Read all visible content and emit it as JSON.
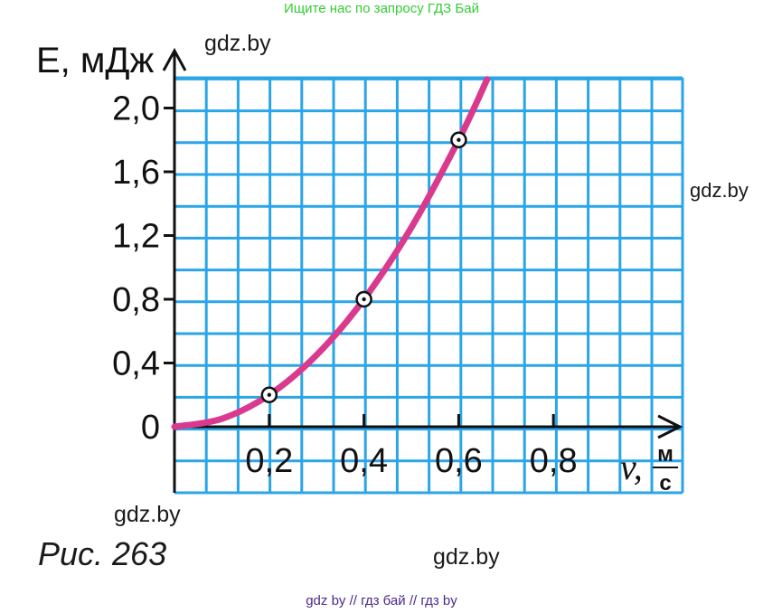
{
  "banner": "Ищите нас по запросу ГДЗ Бай",
  "watermarks": [
    "gdz.by",
    "gdz.by",
    "gdz.by",
    "gdz.by"
  ],
  "caption": "Рис. 263",
  "footer": "gdz by  //  гдз бай  //  гдз by",
  "colors": {
    "grid": "#2aa5e8",
    "curve": "#d93a8e",
    "axis": "#111111"
  },
  "chart_data": {
    "type": "line",
    "title": "",
    "ylabel": "E, мДж",
    "xlabel": "v, м/с",
    "xlabel_var": "v,",
    "xlabel_unit_num": "м",
    "xlabel_unit_den": "с",
    "x_ticks": [
      "0,2",
      "0,4",
      "0,6",
      "0,8"
    ],
    "x_tick_values": [
      0.2,
      0.4,
      0.6,
      0.8
    ],
    "y_ticks": [
      "0",
      "0,4",
      "0,8",
      "1,2",
      "1,6",
      "2,0"
    ],
    "y_tick_values": [
      0,
      0.4,
      0.8,
      1.2,
      1.6,
      2.0
    ],
    "xlim": [
      0,
      1.07
    ],
    "ylim": [
      -0.4,
      2.2
    ],
    "grid": true,
    "curve": {
      "x": [
        0,
        0.1,
        0.2,
        0.3,
        0.4,
        0.5,
        0.6,
        0.66
      ],
      "y": [
        0,
        0.05,
        0.2,
        0.45,
        0.8,
        1.25,
        1.8,
        2.18
      ]
    },
    "points": [
      {
        "x": 0.2,
        "y": 0.2
      },
      {
        "x": 0.4,
        "y": 0.8
      },
      {
        "x": 0.6,
        "y": 1.8
      }
    ]
  }
}
